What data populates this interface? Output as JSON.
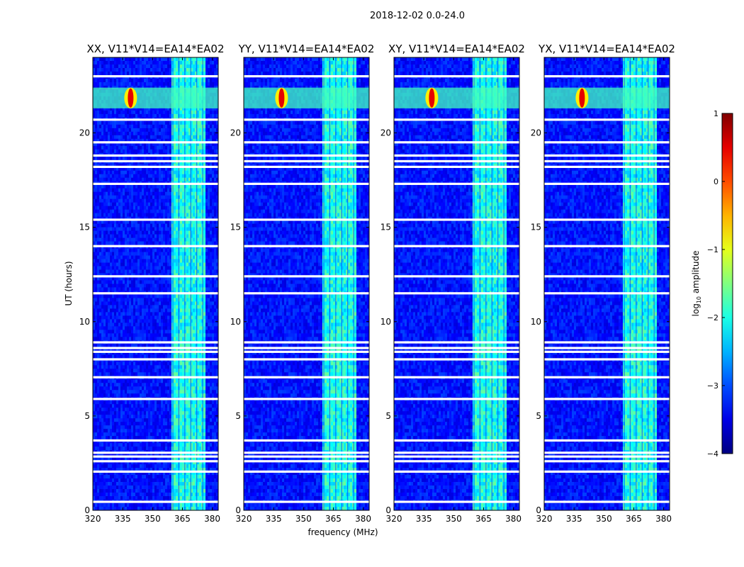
{
  "chart_data": {
    "type": "heatmap",
    "title": "2018-12-02 0.0-24.0",
    "xlabel": "frequency (MHz)",
    "ylabel": "UT (hours)",
    "xlim": [
      320,
      383
    ],
    "ylim": [
      0,
      24
    ],
    "x_ticks": [
      "320",
      "335",
      "350",
      "365",
      "380"
    ],
    "x_tick_values": [
      320,
      335,
      350,
      365,
      380
    ],
    "y_ticks": [
      "0",
      "5",
      "10",
      "15",
      "20"
    ],
    "y_tick_values": [
      0,
      5,
      10,
      15,
      20
    ],
    "panels": [
      {
        "title": "XX, V11*V14=EA14*EA02"
      },
      {
        "title": "YY, V11*V14=EA14*EA02"
      },
      {
        "title": "XY, V11*V14=EA14*EA02"
      },
      {
        "title": "YX, V11*V14=EA14*EA02"
      }
    ],
    "colorbar": {
      "label": "log10 amplitude",
      "label_base": "log",
      "label_sub": "10",
      "label_rest": " amplitude",
      "range": [
        -4,
        1
      ],
      "ticks": [
        "1",
        "0",
        "−1",
        "−2",
        "−3",
        "−4"
      ],
      "tick_values": [
        1,
        0,
        -1,
        -2,
        -3,
        -4
      ],
      "colormap": "jet"
    },
    "features": {
      "background_log_amplitude": -3.3,
      "rfi_band_mhz": [
        359,
        377
      ],
      "rfi_band_log_amplitude": -2.0,
      "bright_burst_ut_hours": [
        21.3,
        22.4
      ],
      "bright_burst_peak_mhz": 339,
      "bright_burst_peak_log_amplitude": 0.5,
      "flagged_gap_ut_hours": [
        0.45,
        2.05,
        2.6,
        2.85,
        3.05,
        3.7,
        5.9,
        7.05,
        8.0,
        8.4,
        8.6,
        8.9,
        11.5,
        12.4,
        14.0,
        15.4,
        17.3,
        18.2,
        18.5,
        18.8,
        19.5,
        20.7,
        23.0
      ]
    }
  }
}
